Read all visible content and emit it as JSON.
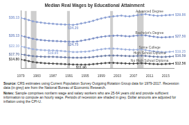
{
  "chart_data": {
    "type": "line",
    "title": "Median Real Wages by Educational Attainment",
    "x": [
      1979,
      1980,
      1981,
      1982,
      1983,
      1984,
      1985,
      1986,
      1987,
      1988,
      1989,
      1990,
      1991,
      1992,
      1993,
      1994,
      1995,
      1996,
      1997,
      1998,
      1999,
      2000,
      2001,
      2002,
      2003,
      2004,
      2005,
      2006,
      2007,
      2008,
      2009,
      2010,
      2011,
      2012,
      2013,
      2014,
      2015,
      2016,
      2017
    ],
    "xlim": [
      1979,
      2017
    ],
    "xticks": [
      1979,
      1983,
      1987,
      1991,
      1995,
      1999,
      2003,
      2007,
      2011,
      2015
    ],
    "ylim": [
      10,
      42
    ],
    "grid": false,
    "tick_labels": "x",
    "marker": "circle",
    "recessions": [
      [
        1980.0,
        1980.5
      ],
      [
        1981.5,
        1982.9
      ],
      [
        1990.5,
        1991.2
      ],
      [
        2001.2,
        2001.9
      ],
      [
        2007.9,
        2009.5
      ]
    ],
    "series": [
      {
        "name": "Advanced Degree",
        "color": "#8a9fd3",
        "values": [
          38.13,
          37.6,
          36.9,
          36.2,
          35.8,
          35.5,
          35.2,
          35.0,
          34.8,
          34.6,
          34.5,
          34.4,
          34.3,
          34.2,
          34.5,
          35.0,
          35.4,
          35.9,
          36.5,
          37.2,
          37.8,
          38.3,
          38.7,
          39.0,
          39.2,
          39.4,
          39.1,
          39.0,
          39.3,
          39.6,
          39.9,
          40.2,
          39.8,
          39.5,
          39.3,
          39.4,
          39.6,
          39.7,
          39.86
        ],
        "value_labels": [
          "$38.13",
          null,
          null,
          null,
          null,
          null,
          null,
          null,
          null,
          null,
          null,
          null,
          null,
          "$34.20",
          null,
          null,
          null,
          null,
          null,
          null,
          null,
          null,
          null,
          null,
          null,
          null,
          null,
          null,
          null,
          null,
          null,
          null,
          null,
          null,
          null,
          null,
          null,
          null,
          "$39.86"
        ]
      },
      {
        "name": "Bachelor's Degree",
        "color": "#7b8fc6",
        "values": [
          28.13,
          27.6,
          27.0,
          26.4,
          26.0,
          25.7,
          25.5,
          25.3,
          25.2,
          25.1,
          25.0,
          24.9,
          24.8,
          24.75,
          24.9,
          25.3,
          25.7,
          26.1,
          26.6,
          27.1,
          27.5,
          27.8,
          28.0,
          28.1,
          28.2,
          28.1,
          27.9,
          27.8,
          28.0,
          28.2,
          28.4,
          28.3,
          27.9,
          27.6,
          27.3,
          27.2,
          27.3,
          27.4,
          27.5
        ],
        "value_labels": [
          "$28.13",
          null,
          null,
          null,
          null,
          null,
          null,
          null,
          null,
          null,
          null,
          null,
          null,
          "$24.75",
          null,
          null,
          null,
          null,
          null,
          null,
          null,
          null,
          null,
          null,
          null,
          null,
          null,
          null,
          null,
          null,
          null,
          null,
          null,
          null,
          null,
          null,
          null,
          null,
          "$27.50"
        ]
      },
      {
        "name": "Some College",
        "color": "#9db0dc",
        "values": [
          22.1,
          21.7,
          21.1,
          20.6,
          20.3,
          20.1,
          20.0,
          19.95,
          19.9,
          19.8,
          19.6,
          19.4,
          19.2,
          19.0,
          19.0,
          19.1,
          19.2,
          19.4,
          19.8,
          20.2,
          20.5,
          20.8,
          20.9,
          20.9,
          20.8,
          20.6,
          20.4,
          20.3,
          20.2,
          20.3,
          20.4,
          20.1,
          19.7,
          19.4,
          19.2,
          19.0,
          18.9,
          19.1,
          19.25
        ],
        "value_labels": [
          "$22.10",
          null,
          null,
          null,
          null,
          null,
          null,
          null,
          "$19.90",
          null,
          null,
          null,
          null,
          null,
          null,
          null,
          null,
          null,
          null,
          null,
          null,
          null,
          null,
          null,
          null,
          null,
          null,
          null,
          null,
          null,
          null,
          null,
          null,
          null,
          null,
          null,
          null,
          null,
          "$19.25"
        ]
      },
      {
        "name": "High School Diploma",
        "color": "#6f7fa8",
        "values": [
          17.7,
          17.4,
          17.0,
          16.7,
          16.5,
          16.4,
          16.3,
          16.3,
          16.3,
          16.2,
          16.1,
          16.0,
          15.9,
          15.8,
          15.8,
          15.8,
          15.9,
          16.0,
          16.2,
          16.5,
          16.7,
          16.9,
          17.0,
          17.0,
          17.0,
          16.9,
          16.8,
          16.7,
          16.7,
          16.8,
          16.9,
          16.8,
          16.6,
          16.4,
          16.3,
          16.2,
          16.3,
          16.4,
          16.59
        ],
        "value_labels": [
          "$17.70",
          null,
          null,
          null,
          null,
          null,
          null,
          null,
          null,
          null,
          null,
          null,
          null,
          null,
          null,
          null,
          null,
          null,
          null,
          null,
          null,
          null,
          null,
          null,
          null,
          null,
          null,
          null,
          null,
          null,
          null,
          null,
          null,
          null,
          null,
          null,
          null,
          null,
          "$16.59"
        ]
      },
      {
        "name": "No High School Diploma",
        "color": "#4d4d4d",
        "values": [
          14.8,
          14.4,
          13.9,
          13.4,
          13.1,
          12.9,
          12.7,
          12.6,
          12.5,
          12.4,
          12.3,
          12.2,
          12.1,
          12.0,
          11.95,
          11.9,
          11.9,
          12.0,
          12.2,
          12.4,
          12.6,
          12.8,
          12.9,
          12.9,
          12.8,
          12.7,
          12.6,
          12.5,
          12.5,
          12.6,
          12.7,
          12.6,
          12.4,
          12.3,
          12.2,
          12.2,
          12.3,
          12.4,
          12.56
        ],
        "value_labels": [
          "$14.80",
          null,
          null,
          null,
          null,
          null,
          null,
          null,
          null,
          null,
          null,
          null,
          null,
          null,
          null,
          "$11.90",
          null,
          null,
          null,
          null,
          null,
          null,
          null,
          null,
          null,
          null,
          null,
          null,
          null,
          null,
          null,
          null,
          null,
          null,
          null,
          null,
          null,
          null,
          "$12.56"
        ]
      }
    ],
    "source": "CRS estimates using Current Population Survey Outgoing Rotation Group data for 1979-2017. Recession data (in grey) are from the National Bureau of Economic Research.",
    "source_label": "Source:",
    "notes": "Sample comprises nonfarm wage and salary workers who are 25-64 years old and provide sufficient information to compute an hourly wage. Periods of recession are shaded in grey. Dollar amounts are adjusted for inflation using the CPI-U.",
    "notes_label": "Notes:"
  }
}
